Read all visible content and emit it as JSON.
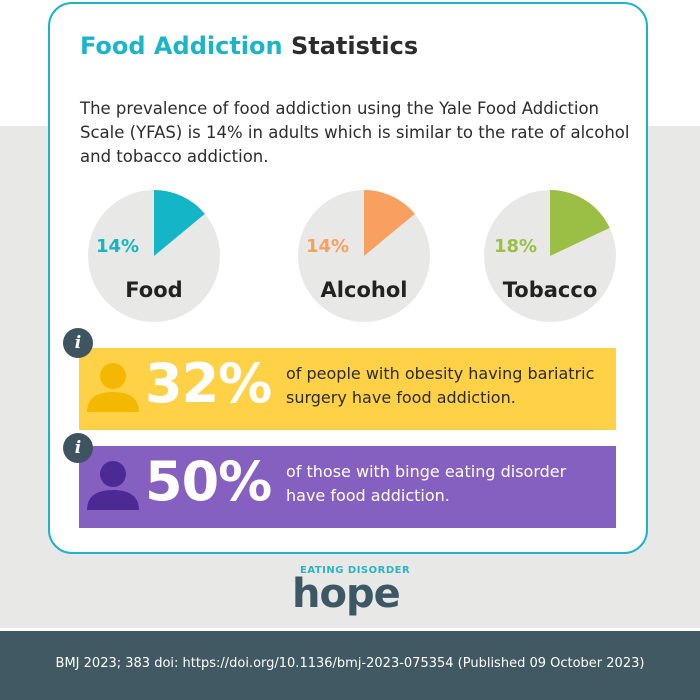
{
  "title": {
    "accent": "Food Addiction",
    "rest": "Statistics"
  },
  "intro": "The prevalence of food addiction using the Yale Food Addiction Scale (YFAS) is 14% in adults which is similar to the rate of alcohol and tobacco addiction.",
  "pies": [
    {
      "label": "Food",
      "pct_text": "14%",
      "value": 0.14,
      "color": "#13b5c6"
    },
    {
      "label": "Alcohol",
      "pct_text": "14%",
      "value": 0.14,
      "color": "#f8a060"
    },
    {
      "label": "Tobacco",
      "pct_text": "18%",
      "value": 0.18,
      "color": "#9bbf45"
    }
  ],
  "banners": [
    {
      "big": "32%",
      "text": "of people with obesity having bariatric surgery have food addiction.",
      "bg": "#ffd147",
      "icon_color": "#f5b800",
      "text_color": "#2c2c2c",
      "info_icon": "i"
    },
    {
      "big": "50%",
      "text": "of those with binge eating disorder have food addiction.",
      "bg": "#8560c1",
      "icon_color": "#4b2a93",
      "text_color": "#ffffff",
      "info_icon": "i"
    }
  ],
  "logo": {
    "small": "EATING DISORDER",
    "main": "hope"
  },
  "footer": "BMJ 2023; 383 doi: https://doi.org/10.1136/bmj-2023-075354 (Published 09 October 2023)"
}
